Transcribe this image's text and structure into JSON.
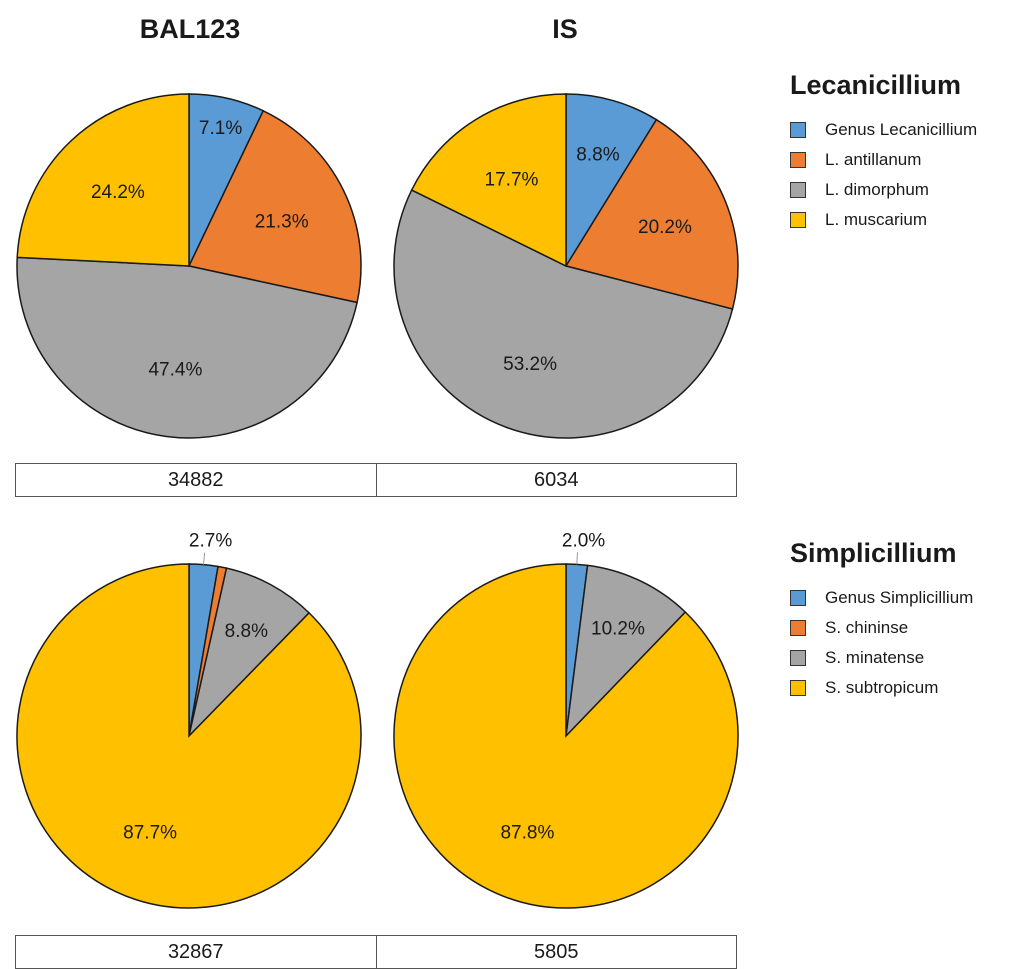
{
  "column_titles": [
    "BAL123",
    "IS"
  ],
  "colors": {
    "blue": "#5b9bd5",
    "orange": "#ed7d31",
    "gray": "#a5a5a5",
    "yellow": "#ffc000"
  },
  "chart_data": [
    {
      "type": "pie",
      "group": "Lecanicillium",
      "sample": "BAL123",
      "labels": [
        "Genus Lecanicillium",
        "L. antillanum",
        "L. dimorphum",
        "L. muscarium"
      ],
      "values": [
        7.1,
        21.3,
        47.4,
        24.2
      ],
      "data_labels": [
        "7.1%",
        "21.3%",
        "47.4%",
        "24.2%"
      ],
      "total": "34882"
    },
    {
      "type": "pie",
      "group": "Lecanicillium",
      "sample": "IS",
      "labels": [
        "Genus Lecanicillium",
        "L. antillanum",
        "L. dimorphum",
        "L. muscarium"
      ],
      "values": [
        8.8,
        20.2,
        53.2,
        17.7
      ],
      "data_labels": [
        "8.8%",
        "20.2%",
        "53.2%",
        "17.7%"
      ],
      "total": "6034"
    },
    {
      "type": "pie",
      "group": "Simplicillium",
      "sample": "BAL123",
      "labels": [
        "Genus Simplicillium",
        "S. chininse",
        "S. minatense",
        "S. subtropicum"
      ],
      "values": [
        2.7,
        0.8,
        8.8,
        87.7
      ],
      "data_labels": [
        "2.7%",
        "",
        "8.8%",
        "87.7%"
      ],
      "total": "32867"
    },
    {
      "type": "pie",
      "group": "Simplicillium",
      "sample": "IS",
      "labels": [
        "Genus Simplicillium",
        "S. chininse",
        "S. minatense",
        "S. subtropicum"
      ],
      "values": [
        2.0,
        0,
        10.2,
        87.8
      ],
      "data_labels": [
        "2.0%",
        "",
        "10.2%",
        "87.8%"
      ],
      "total": "5805"
    }
  ],
  "legends": [
    {
      "title": "Lecanicillium",
      "items": [
        "Genus Lecanicillium",
        "L. antillanum",
        "L. dimorphum",
        "L. muscarium"
      ]
    },
    {
      "title": "Simplicillium",
      "items": [
        "Genus Simplicillium",
        "S. chininse",
        "S. minatense",
        "S. subtropicum"
      ]
    }
  ]
}
